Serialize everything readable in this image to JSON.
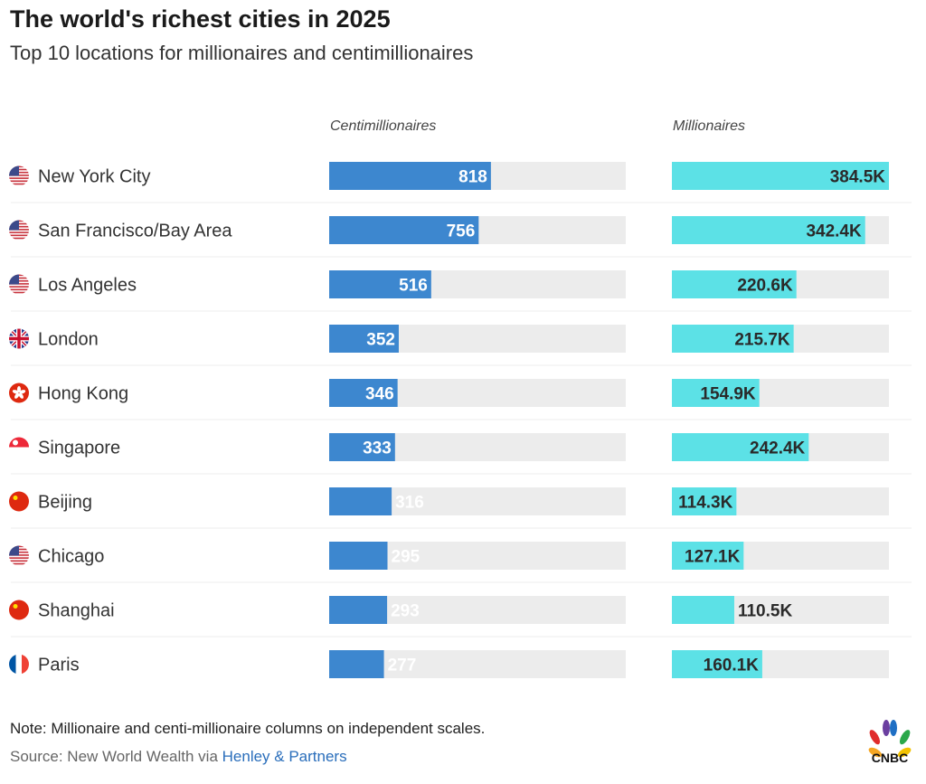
{
  "title": "The world's richest cities in 2025",
  "subtitle": "Top 10 locations for millionaires and centimillionaires",
  "note": "Note: Millionaire and centi-millionaire columns on independent scales.",
  "source_prefix": "Source: New World Wealth via ",
  "source_link": "Henley & Partners",
  "logo_text": "CNBC",
  "chart_data": {
    "type": "bar",
    "orientation": "horizontal",
    "categories": [
      "New York City",
      "San Francisco/Bay Area",
      "Los Angeles",
      "London",
      "Hong Kong",
      "Singapore",
      "Beijing",
      "Chicago",
      "Shanghai",
      "Paris"
    ],
    "flags": [
      "us",
      "us",
      "us",
      "gb",
      "hk",
      "sg",
      "cn",
      "us",
      "cn",
      "fr"
    ],
    "series": [
      {
        "name": "Centimillionaires",
        "values": [
          818,
          756,
          516,
          352,
          346,
          333,
          316,
          295,
          293,
          277
        ],
        "labels": [
          "818",
          "756",
          "516",
          "352",
          "346",
          "333",
          "316",
          "295",
          "293",
          "277"
        ],
        "color": "#3d87cf",
        "xlim": [
          0,
          1500
        ]
      },
      {
        "name": "Millionaires",
        "values": [
          384.5,
          342.4,
          220.6,
          215.7,
          154.9,
          242.4,
          114.3,
          127.1,
          110.5,
          160.1
        ],
        "labels": [
          "384.5K",
          "342.4K",
          "220.6K",
          "215.7K",
          "154.9K",
          "242.4K",
          "114.3K",
          "127.1K",
          "110.5K",
          "160.1K"
        ],
        "color": "#5ce1e6",
        "xlim": [
          0,
          384.5
        ]
      }
    ],
    "track_color": "#ececec",
    "grid": false
  }
}
